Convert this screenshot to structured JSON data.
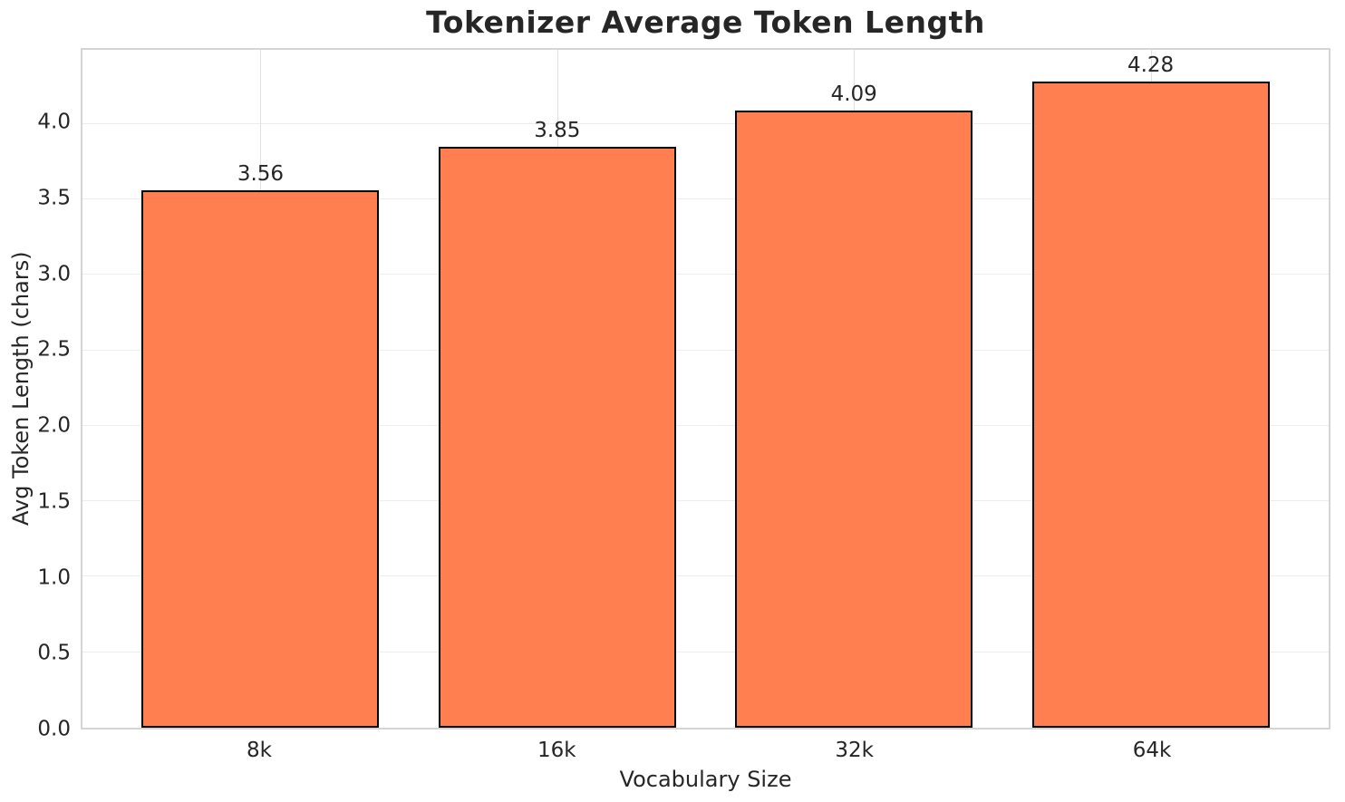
{
  "chart_data": {
    "type": "bar",
    "title": "Tokenizer Average Token Length",
    "xlabel": "Vocabulary Size",
    "ylabel": "Avg Token Length (chars)",
    "categories": [
      "8k",
      "16k",
      "32k",
      "64k"
    ],
    "values": [
      3.56,
      3.85,
      4.09,
      4.28
    ],
    "value_labels": [
      "3.56",
      "3.85",
      "4.09",
      "4.28"
    ],
    "yticks": [
      "0.0",
      "0.5",
      "1.0",
      "1.5",
      "2.0",
      "2.5",
      "3.0",
      "3.5",
      "4.0"
    ],
    "ylim": [
      0,
      4.49
    ],
    "xlim": [
      -0.6,
      3.6
    ],
    "bar_width": 0.8,
    "grid": true,
    "legend_position": "none",
    "colors": {
      "bar_fill": "#ff7f50",
      "bar_edge": "#000000",
      "grid_horizontal": "#ededed",
      "grid_vertical": "#e0e0e0",
      "spine": "#d5d5d5",
      "text": "#262626",
      "background": "#ffffff"
    }
  }
}
